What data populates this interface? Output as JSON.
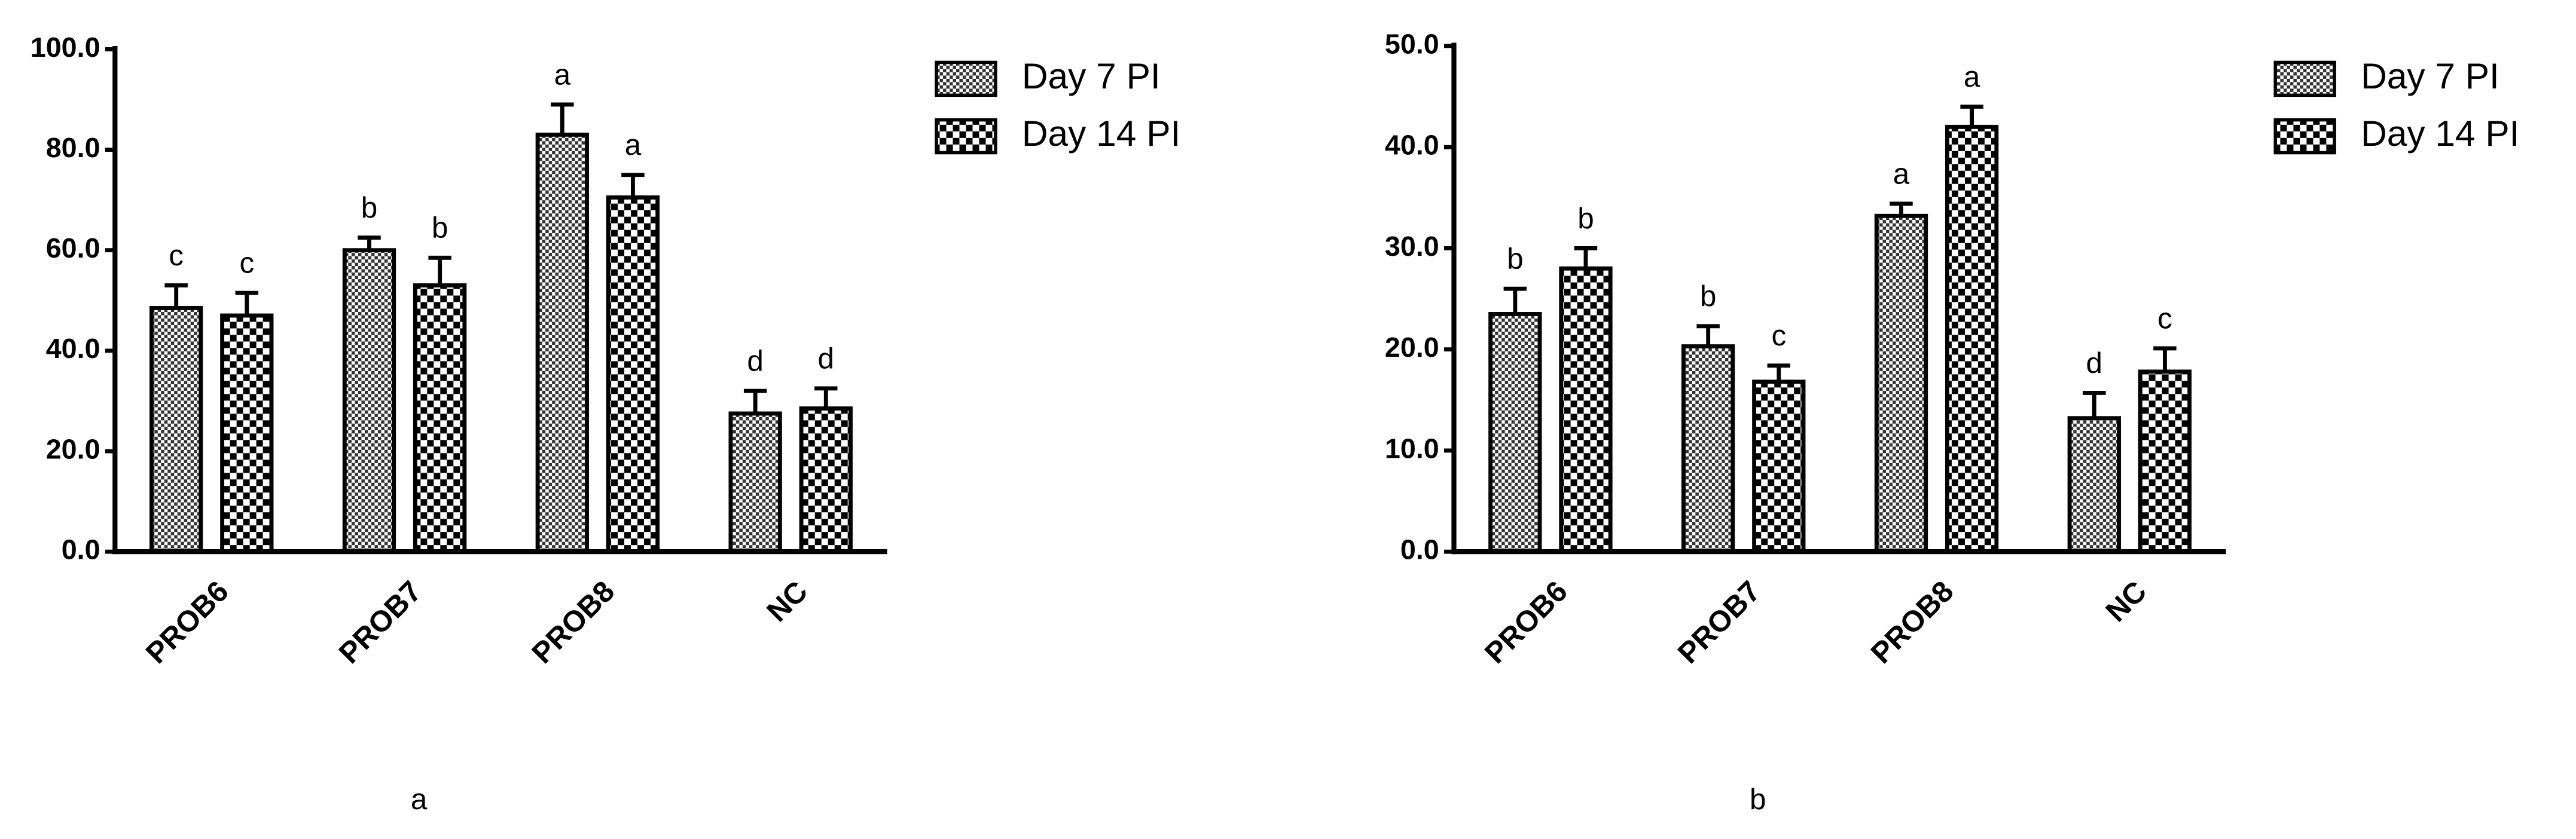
{
  "chart_data": [
    {
      "type": "bar",
      "caption": "a",
      "categories": [
        "PROB6",
        "PROB7",
        "PROB8",
        "NC"
      ],
      "series": [
        {
          "name": "Day 7 PI",
          "values": [
            48.5,
            60,
            83,
            27.5
          ],
          "errors": [
            4.5,
            2.5,
            6,
            4.5
          ],
          "annotations": [
            "c",
            "b",
            "a",
            "d"
          ]
        },
        {
          "name": "Day 14 PI",
          "values": [
            47,
            53,
            70.5,
            28.5
          ],
          "errors": [
            4.5,
            5.5,
            4.5,
            4
          ],
          "annotations": [
            "c",
            "b",
            "a",
            "d"
          ]
        }
      ],
      "ylim": [
        0,
        100
      ],
      "yticks": [
        {
          "value": 0,
          "label": "0.0"
        },
        {
          "value": 20,
          "label": "20.0"
        },
        {
          "value": 40,
          "label": "40.0"
        },
        {
          "value": 60,
          "label": "60.0"
        },
        {
          "value": 80,
          "label": "80.0"
        },
        {
          "value": 100,
          "label": "100.0"
        }
      ]
    },
    {
      "type": "bar",
      "caption": "b",
      "categories": [
        "PROB6",
        "PROB7",
        "PROB8",
        "NC"
      ],
      "series": [
        {
          "name": "Day 7 PI",
          "values": [
            23.5,
            20.3,
            33.2,
            13.2
          ],
          "errors": [
            2.5,
            2,
            1.2,
            2.5
          ],
          "annotations": [
            "b",
            "b",
            "a",
            "d"
          ]
        },
        {
          "name": "Day 14 PI",
          "values": [
            28,
            16.8,
            42,
            17.8
          ],
          "errors": [
            2,
            1.6,
            2,
            2.3
          ],
          "annotations": [
            "b",
            "c",
            "a",
            "c"
          ]
        }
      ],
      "ylim": [
        0,
        50
      ],
      "yticks": [
        {
          "value": 0,
          "label": "0.0"
        },
        {
          "value": 10,
          "label": "10.0"
        },
        {
          "value": 20,
          "label": "20.0"
        },
        {
          "value": 30,
          "label": "30.0"
        },
        {
          "value": 40,
          "label": "40.0"
        },
        {
          "value": 50,
          "label": "50.0"
        }
      ]
    }
  ]
}
